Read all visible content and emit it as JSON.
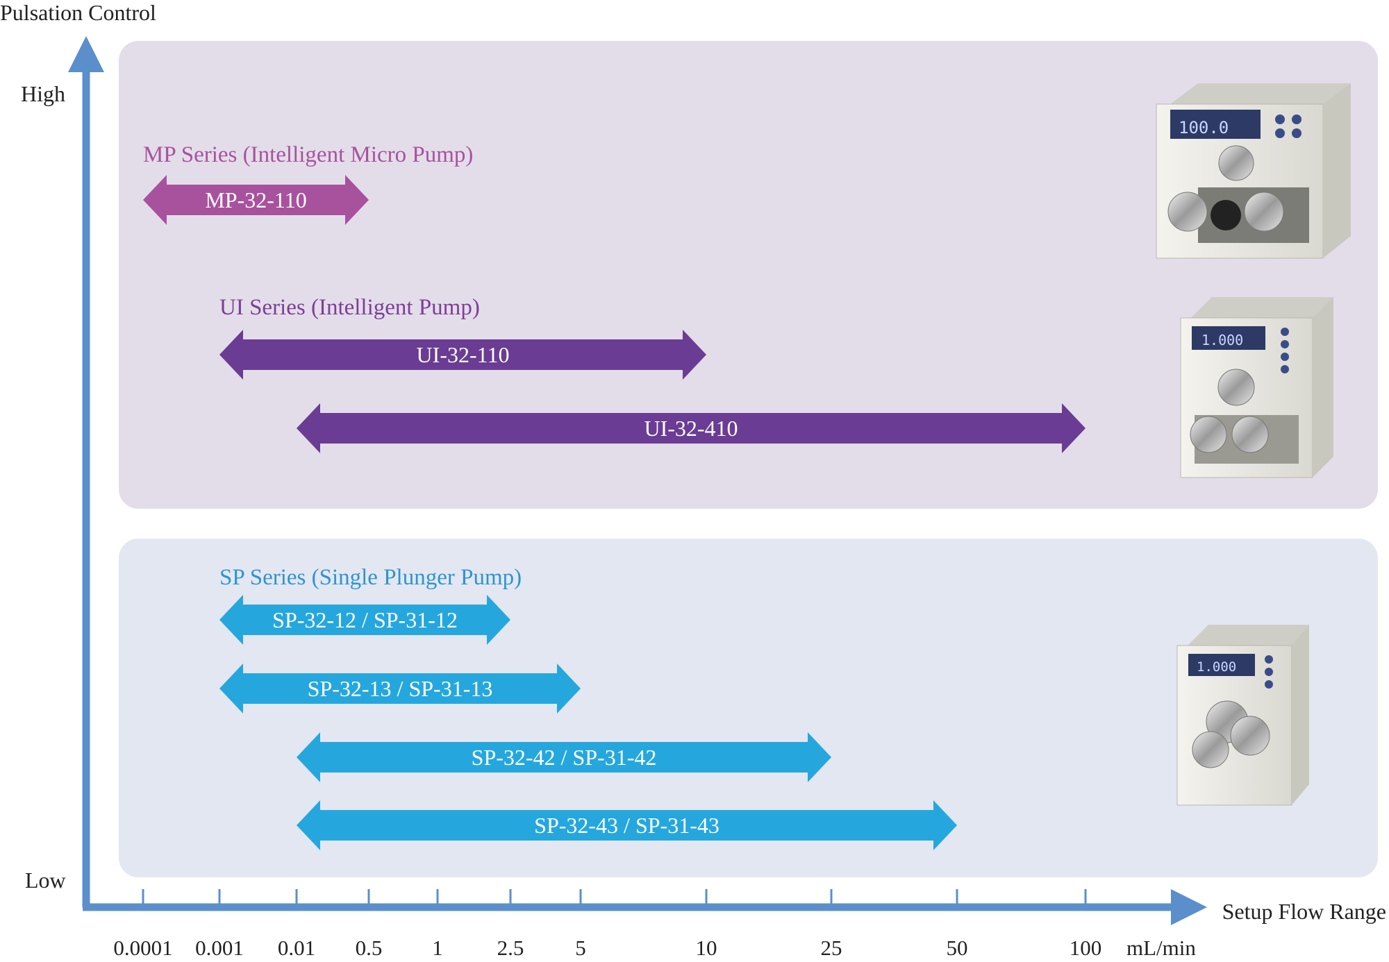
{
  "chart_data": {
    "type": "bar",
    "orientation": "horizontal-range",
    "ylabel": "Pulsation Control",
    "y_high_label": "High",
    "y_low_label": "Low",
    "xlabel": "Setup Flow Range",
    "x_unit": "mL/min",
    "x_ticks": [
      "0.0001",
      "0.001",
      "0.01",
      "0.5",
      "1",
      "2.5",
      "5",
      "10",
      "25",
      "50",
      "100"
    ],
    "colors": {
      "axis": "#5a8fcc",
      "mp": "#a8529e",
      "ui": "#6a3c93",
      "sp": "#25a7de",
      "mp_title": "#a8529e",
      "ui_title": "#7d3e97",
      "sp_title": "#2f94cc",
      "panel_top": "#e3dde9",
      "panel_bottom": "#e3e7f1"
    },
    "groups": [
      {
        "key": "mp",
        "title": "MP Series (Intelligent Micro Pump)",
        "panel": "top",
        "series": [
          {
            "name": "MP-32-110",
            "min": "0.0001",
            "max": "0.5"
          }
        ]
      },
      {
        "key": "ui",
        "title": "UI Series (Intelligent Pump)",
        "panel": "top",
        "series": [
          {
            "name": "UI-32-110",
            "min": "0.001",
            "max": "10"
          },
          {
            "name": "UI-32-410",
            "min": "0.01",
            "max": "100"
          }
        ]
      },
      {
        "key": "sp",
        "title": "SP Series (Single Plunger Pump)",
        "panel": "bottom",
        "series": [
          {
            "name": "SP-32-12 / SP-31-12",
            "min": "0.001",
            "max": "2.5"
          },
          {
            "name": "SP-32-13 / SP-31-13",
            "min": "0.001",
            "max": "5"
          },
          {
            "name": "SP-32-42 / SP-31-42",
            "min": "0.01",
            "max": "25"
          },
          {
            "name": "SP-32-43 / SP-31-43",
            "min": "0.01",
            "max": "50"
          }
        ]
      }
    ],
    "pump_images": [
      {
        "name": "mp-pump",
        "display": "100.0"
      },
      {
        "name": "ui-pump",
        "display": "1.000"
      },
      {
        "name": "sp-pump",
        "display": "1.000"
      }
    ]
  }
}
